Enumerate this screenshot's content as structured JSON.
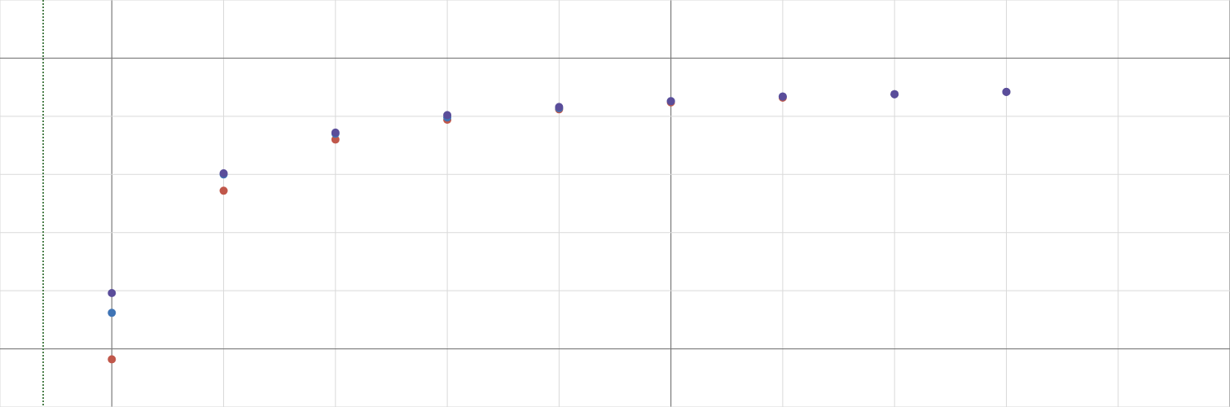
{
  "chart_data": {
    "type": "scatter",
    "title": "",
    "xlabel": "",
    "ylabel": "",
    "xlim": [
      -5,
      50
    ],
    "ylim": [
      -0.5,
      3.0
    ],
    "grid": true,
    "grid_minor_step": {
      "x": 5,
      "y": 0.5
    },
    "grid_major_step": {
      "x": 25,
      "y": 2.5
    },
    "vertical_line": {
      "x": -3.07,
      "color": "#4a7f4a",
      "style": "dotted"
    },
    "series": [
      {
        "color": "#c0574a",
        "x": [
          0,
          5,
          10,
          15,
          20,
          25,
          30,
          35,
          40
        ],
        "y": [
          -0.09,
          1.36,
          1.8,
          1.97,
          2.06,
          2.12,
          2.16,
          2.19,
          2.21
        ]
      },
      {
        "color": "#3f74b5",
        "x": [
          0,
          5,
          10,
          15,
          20,
          25,
          30,
          35,
          40
        ],
        "y": [
          0.31,
          1.5,
          1.85,
          1.99,
          2.07,
          2.13,
          2.17,
          2.19,
          2.21
        ]
      },
      {
        "color": "#5a4d9a",
        "x": [
          0,
          5,
          10,
          15,
          20,
          25,
          30,
          35,
          40
        ],
        "y": [
          0.48,
          1.51,
          1.86,
          2.01,
          2.08,
          2.13,
          2.17,
          2.19,
          2.21
        ]
      }
    ]
  }
}
